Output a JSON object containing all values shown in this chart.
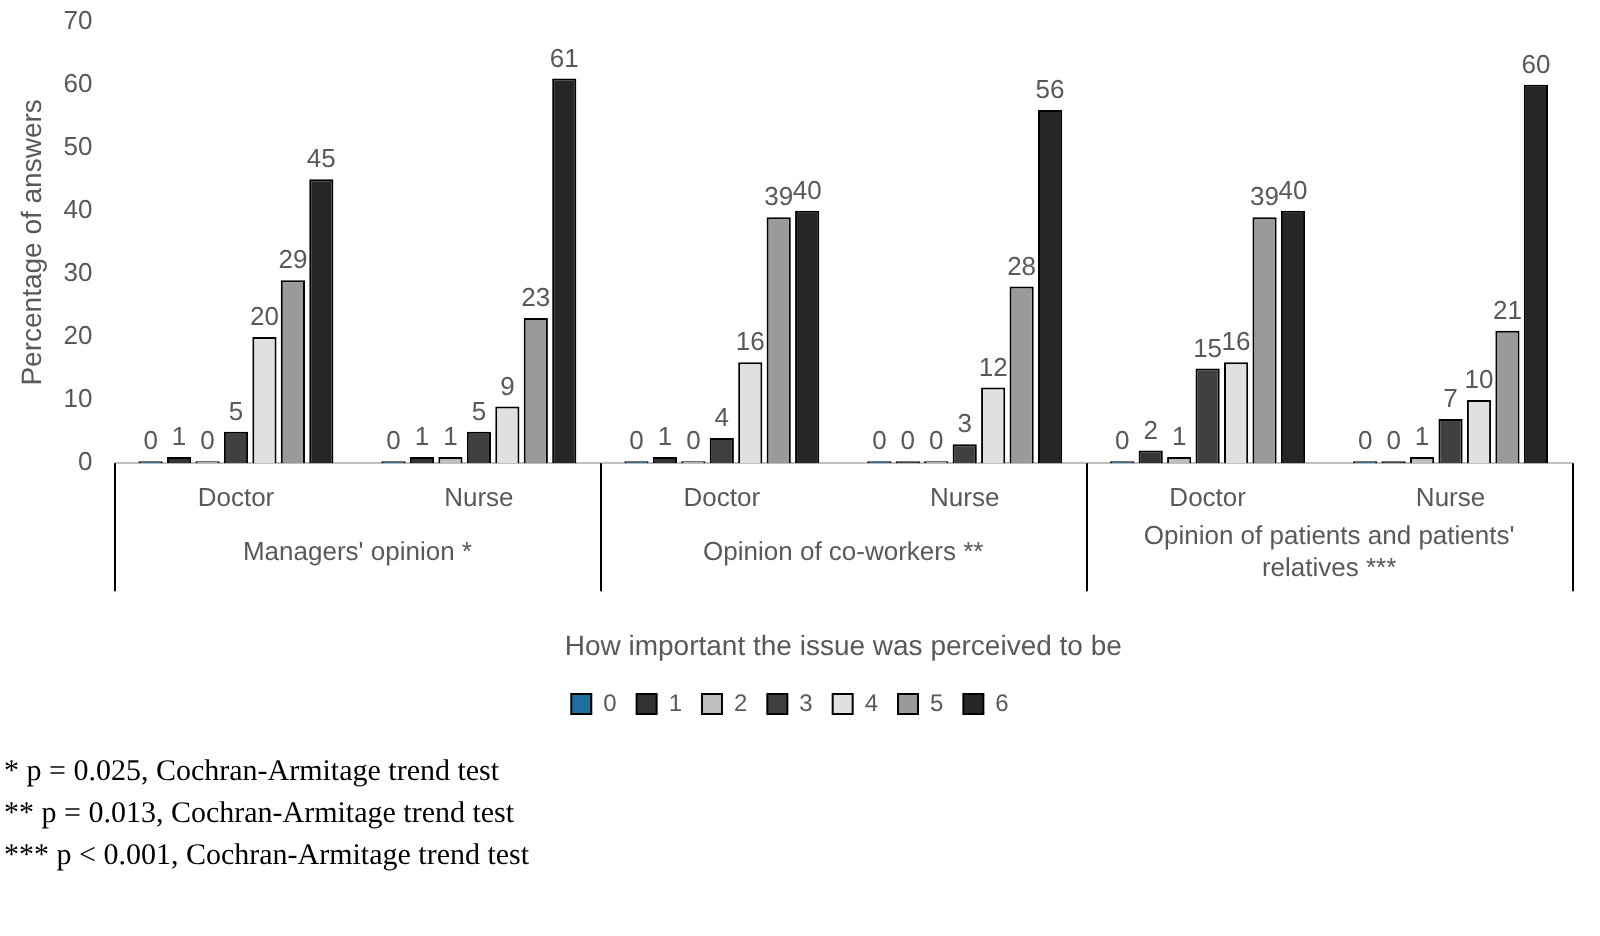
{
  "chart_data": {
    "type": "bar",
    "xlabel": "How important the issue was perceived to be",
    "ylabel": "Percentage of answers",
    "categories": [
      "Doctor",
      "Nurse",
      "Doctor",
      "Nurse",
      "Doctor",
      "Nurse"
    ],
    "series": [
      {
        "name": "0",
        "color": "#1f6f9f",
        "values": [
          0,
          0,
          0,
          0,
          0,
          0
        ]
      },
      {
        "name": "1",
        "color": "#333333",
        "values": [
          1,
          1,
          1,
          0,
          2,
          0
        ]
      },
      {
        "name": "2",
        "color": "#bfbfbf",
        "values": [
          0,
          1,
          0,
          0,
          1,
          1
        ]
      },
      {
        "name": "3",
        "color": "#404040",
        "values": [
          5,
          5,
          4,
          3,
          15,
          7
        ]
      },
      {
        "name": "4",
        "color": "#e0e0e0",
        "values": [
          20,
          9,
          16,
          12,
          16,
          10
        ]
      },
      {
        "name": "5",
        "color": "#9a9a9a",
        "values": [
          29,
          23,
          39,
          28,
          39,
          21
        ]
      },
      {
        "name": "6",
        "color": "#262626",
        "values": [
          45,
          61,
          40,
          56,
          40,
          60
        ]
      }
    ],
    "ylim": [
      0,
      70
    ],
    "yticks": [
      0,
      10,
      20,
      30,
      40,
      50,
      60,
      70
    ],
    "grid": false,
    "legend": "bottom",
    "data_labels": true,
    "annotations": [
      {
        "text": "Managers' opinion *"
      },
      {
        "text": "Opinion of co-workers **"
      },
      {
        "text": "Opinion of patients and patients' relatives ***"
      },
      "* p = 0.025, Cochran-Armitage trend test",
      "** p = 0.013, Cochran-Armitage trend test",
      "*** p < 0.001, Cochran-Armitage trend test"
    ]
  }
}
